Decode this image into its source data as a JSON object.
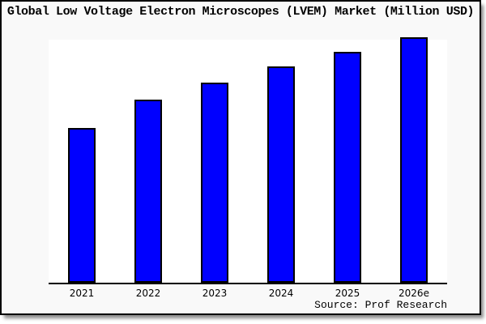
{
  "title": "Global Low Voltage Electron Microscopes (LVEM) Market (Million USD)",
  "source": "Source: Prof Research",
  "colors": {
    "bar_fill": "#0000ff",
    "bar_border": "#000000",
    "figure_background": "#f9f9f9",
    "plot_background": "#ffffff",
    "frame_border": "#000000",
    "shadow": "#8e8e8e",
    "text": "#000000"
  },
  "chart_data": {
    "type": "bar",
    "title": "Global Low Voltage Electron Microscopes (LVEM) Market (Million USD)",
    "categories": [
      "2021",
      "2022",
      "2023",
      "2024",
      "2025",
      "2026e"
    ],
    "values": [
      62.5,
      74.5,
      81.3,
      88,
      94,
      100
    ],
    "xlabel": "",
    "ylabel": "",
    "ylim": [
      0,
      100.5
    ],
    "grid": false,
    "legend_position": "none",
    "y_axis_labels_visible": false,
    "annotation": "Source: Prof Research"
  }
}
